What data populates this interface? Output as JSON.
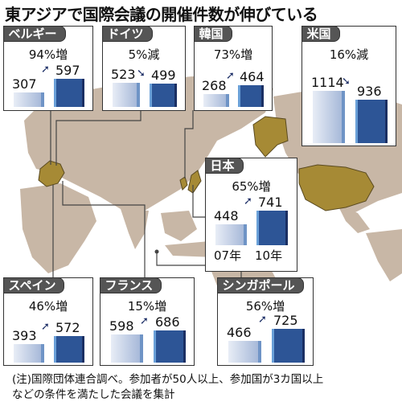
{
  "title": "東アジアで国際会議の開催件数が伸びている",
  "note_lines": [
    "(注)国際団体連合調べ。参加者が50人以上、参加国が3カ国以上",
    "などの条件を満たした会議を集計"
  ],
  "year_labels": [
    "07年",
    "10年"
  ],
  "colors": {
    "bar_old": "#a7b9d9",
    "bar_new": "#2d5596",
    "map_land": "#c8b7a6",
    "highlight": "#a68a35",
    "tab": "#555555"
  },
  "chart_data": {
    "type": "bar",
    "title": "東アジアで国際会議の開催件数が伸びている",
    "categories": [
      "07年",
      "10年"
    ],
    "panels": [
      {
        "country": "ベルギー",
        "change": "94%増",
        "values": [
          307,
          597
        ],
        "labels": [
          "307",
          "597"
        ],
        "arrow": "up"
      },
      {
        "country": "ドイツ",
        "change": "5%減",
        "values": [
          523,
          499
        ],
        "labels": [
          "523",
          "499"
        ],
        "arrow": "down"
      },
      {
        "country": "韓国",
        "change": "73%増",
        "values": [
          268,
          464
        ],
        "labels": [
          "268",
          "464"
        ],
        "arrow": "up"
      },
      {
        "country": "米国",
        "change": "16%減",
        "values": [
          1114,
          936
        ],
        "labels": [
          "1114",
          "936"
        ],
        "arrow": "down"
      },
      {
        "country": "日本",
        "change": "65%増",
        "values": [
          448,
          741
        ],
        "labels": [
          "448",
          "741"
        ],
        "arrow": "up"
      },
      {
        "country": "スペイン",
        "change": "46%増",
        "values": [
          393,
          572
        ],
        "labels": [
          "393",
          "572"
        ],
        "arrow": "up"
      },
      {
        "country": "フランス",
        "change": "15%増",
        "values": [
          598,
          686
        ],
        "labels": [
          "598",
          "686"
        ],
        "arrow": "up"
      },
      {
        "country": "シンガポール",
        "change": "56%増",
        "values": [
          466,
          725
        ],
        "labels": [
          "466",
          "725"
        ],
        "arrow": "up"
      }
    ]
  }
}
